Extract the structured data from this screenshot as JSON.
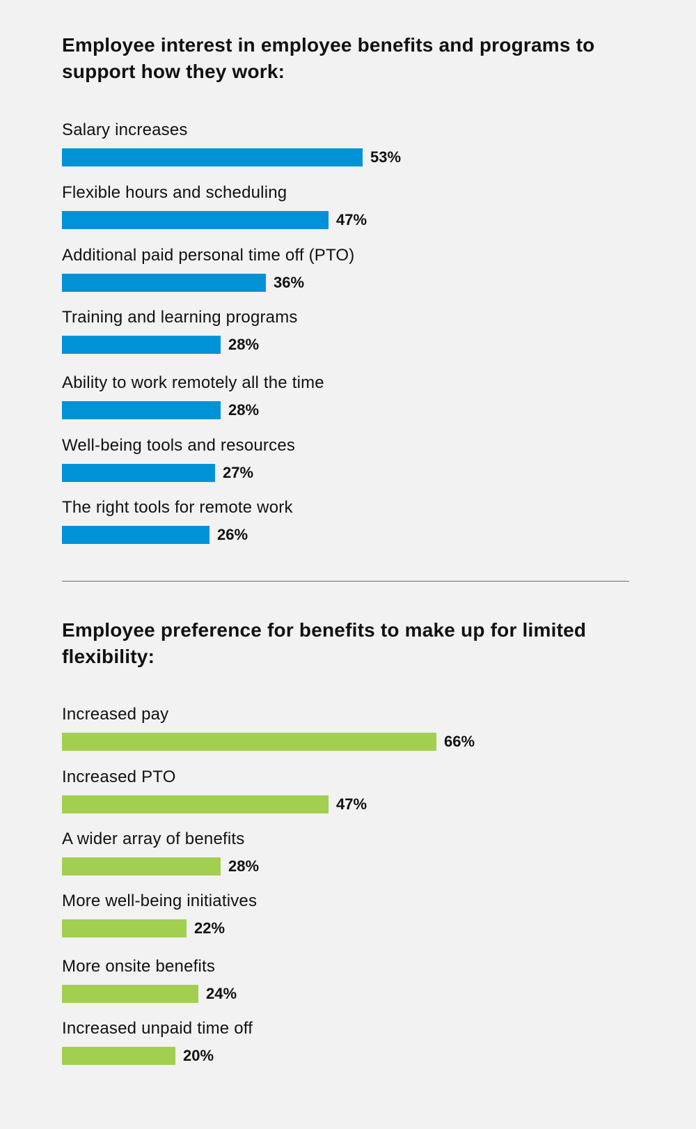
{
  "chart_data": [
    {
      "type": "bar",
      "orientation": "horizontal",
      "title": "Employee interest in employee benefits and programs to support how they work:",
      "bar_color": "#0092d6",
      "value_suffix": "%",
      "categories": [
        "Salary increases",
        "Flexible hours and scheduling",
        "Additional paid personal time off (PTO)",
        "Training and learning programs",
        "Ability to work remotely all the time",
        "Well-being tools and resources",
        "The right tools for remote work"
      ],
      "values": [
        53,
        47,
        36,
        28,
        28,
        27,
        26
      ],
      "value_labels": [
        "53%",
        "47%",
        "36%",
        "28%",
        "28%",
        "27%",
        "26%"
      ]
    },
    {
      "type": "bar",
      "orientation": "horizontal",
      "title": "Employee preference for benefits to make up for limited flexibility:",
      "bar_color": "#a3cf50",
      "value_suffix": "%",
      "categories": [
        "Increased pay",
        "Increased PTO",
        "A wider array of benefits",
        "More well-being initiatives",
        "More onsite benefits",
        "Increased unpaid time off"
      ],
      "values": [
        66,
        47,
        28,
        22,
        24,
        20
      ],
      "value_labels": [
        "66%",
        "47%",
        "28%",
        "22%",
        "24%",
        "20%"
      ]
    }
  ]
}
